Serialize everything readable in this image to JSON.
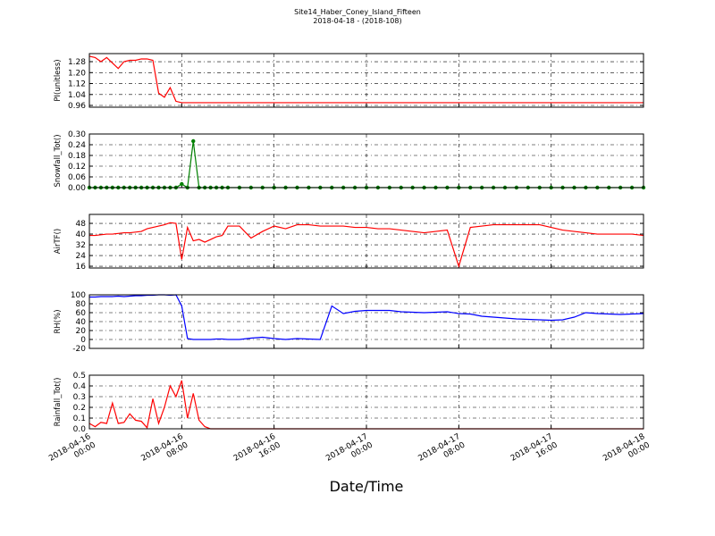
{
  "chart_data": {
    "title": "Site14_Haber_Coney_Island_Fifteen",
    "subtitle": "2018-04-18 - (2018-108)",
    "x_label": "Date/Time",
    "xlim": [
      "2018-04-16 00:00",
      "2018-04-18 00:00"
    ],
    "xticks": [
      "2018-04-16 00:00",
      "2018-04-16 08:00",
      "2018-04-16 16:00",
      "2018-04-17 00:00",
      "2018-04-17 08:00",
      "2018-04-17 16:00",
      "2018-04-18 00:00"
    ],
    "x": [
      "2018-04-16 00:00",
      "2018-04-16 00:30",
      "2018-04-16 01:00",
      "2018-04-16 01:30",
      "2018-04-16 02:00",
      "2018-04-16 02:30",
      "2018-04-16 03:00",
      "2018-04-16 03:30",
      "2018-04-16 04:00",
      "2018-04-16 04:30",
      "2018-04-16 05:00",
      "2018-04-16 05:30",
      "2018-04-16 06:00",
      "2018-04-16 06:30",
      "2018-04-16 07:00",
      "2018-04-16 07:30",
      "2018-04-16 08:00",
      "2018-04-16 08:30",
      "2018-04-16 09:00",
      "2018-04-16 09:30",
      "2018-04-16 10:00",
      "2018-04-16 10:30",
      "2018-04-16 11:00",
      "2018-04-16 11:30",
      "2018-04-16 12:00",
      "2018-04-16 13:00",
      "2018-04-16 14:00",
      "2018-04-16 15:00",
      "2018-04-16 16:00",
      "2018-04-16 17:00",
      "2018-04-16 18:00",
      "2018-04-16 19:00",
      "2018-04-16 20:00",
      "2018-04-16 21:00",
      "2018-04-16 22:00",
      "2018-04-16 23:00",
      "2018-04-17 00:00",
      "2018-04-17 01:00",
      "2018-04-17 02:00",
      "2018-04-17 03:00",
      "2018-04-17 04:00",
      "2018-04-17 05:00",
      "2018-04-17 06:00",
      "2018-04-17 07:00",
      "2018-04-17 08:00",
      "2018-04-17 09:00",
      "2018-04-17 10:00",
      "2018-04-17 11:00",
      "2018-04-17 12:00",
      "2018-04-17 13:00",
      "2018-04-17 14:00",
      "2018-04-17 15:00",
      "2018-04-17 16:00",
      "2018-04-17 17:00",
      "2018-04-17 18:00",
      "2018-04-17 19:00",
      "2018-04-17 20:00",
      "2018-04-17 21:00",
      "2018-04-17 22:00",
      "2018-04-17 23:00",
      "2018-04-18 00:00"
    ],
    "panels": [
      {
        "type": "line",
        "y_label": "PI(unitless)",
        "color": "#ff0000",
        "ylim": [
          0.947,
          1.339
        ],
        "yticks": [
          0.96,
          1.04,
          1.12,
          {
            "value": 1.2,
            "label": "1.20"
          },
          1.28
        ],
        "values": [
          1.32,
          1.31,
          1.28,
          1.31,
          1.27,
          1.23,
          1.28,
          1.29,
          1.29,
          1.3,
          1.3,
          1.29,
          1.05,
          1.02,
          1.09,
          0.99,
          0.98,
          0.98,
          0.98,
          0.98,
          0.98,
          0.98,
          0.98,
          0.98,
          0.98,
          0.98,
          0.98,
          0.98,
          0.98,
          0.98,
          0.98,
          0.98,
          0.98,
          0.98,
          0.98,
          0.98,
          0.98,
          0.98,
          0.98,
          0.98,
          0.98,
          0.98,
          0.98,
          0.98,
          0.98,
          0.98,
          0.98,
          0.98,
          0.98,
          0.98,
          0.98,
          0.98,
          0.98,
          0.98,
          0.98,
          0.98,
          0.98,
          0.98,
          0.98,
          0.98,
          0.98
        ]
      },
      {
        "type": "line",
        "y_label": "Snowfall_Tot()",
        "color": "#008000",
        "markers": true,
        "ylim": [
          0,
          0.3
        ],
        "yticks": [
          {
            "value": 0,
            "label": "0.00"
          },
          0.06,
          0.12,
          0.18,
          0.24,
          {
            "value": 0.3,
            "label": "0.30"
          }
        ],
        "values": [
          0,
          0,
          0,
          0,
          0,
          0,
          0,
          0,
          0,
          0,
          0,
          0,
          0,
          0,
          0,
          0,
          0.02,
          0,
          0.26,
          0,
          0,
          0,
          0,
          0,
          0,
          0,
          0,
          0,
          0,
          0,
          0,
          0,
          0,
          0,
          0,
          0,
          0,
          0,
          0,
          0,
          0,
          0,
          0,
          0,
          0,
          0,
          0,
          0,
          0,
          0,
          0,
          0,
          0,
          0,
          0,
          0,
          0,
          0,
          0,
          0,
          0
        ]
      },
      {
        "type": "line",
        "y_label": "AirTF()",
        "color": "#ff0000",
        "ylim": [
          14.7,
          54.7
        ],
        "yticks": [
          16,
          24,
          32,
          40,
          48
        ],
        "values": [
          39,
          39,
          39.5,
          40,
          40,
          40.5,
          41,
          41,
          41.5,
          42,
          44,
          45,
          46,
          47,
          48.5,
          48,
          21,
          45,
          35,
          36,
          34,
          36,
          38,
          39,
          46,
          46,
          37,
          42,
          46,
          44,
          47,
          47,
          46,
          46,
          46,
          45,
          45,
          44,
          44,
          43,
          42,
          41,
          42,
          43,
          16,
          45,
          46,
          47,
          47,
          47,
          47,
          47,
          45,
          43,
          42,
          41,
          40,
          40,
          40,
          40,
          39
        ]
      },
      {
        "type": "line",
        "y_label": "RH(%)",
        "color": "#0000ff",
        "ylim": [
          -20,
          100
        ],
        "yticks": [
          -20,
          0,
          20,
          40,
          60,
          80,
          100
        ],
        "values": [
          95,
          95,
          96,
          96,
          96,
          97,
          96,
          97,
          98,
          98,
          99,
          99,
          100,
          100,
          99,
          100,
          75,
          2,
          0,
          0,
          0,
          0,
          1,
          1,
          0,
          0,
          3,
          5,
          2,
          0,
          2,
          1,
          0,
          75,
          58,
          63,
          65,
          65,
          65,
          62,
          61,
          60,
          61,
          62,
          58,
          57,
          52,
          50,
          48,
          46,
          45,
          44,
          43,
          44,
          50,
          60,
          58,
          57,
          56,
          57,
          58
        ]
      },
      {
        "type": "line",
        "y_label": "Rainfall_Tot()",
        "color": "#ff0000",
        "ylim": [
          0,
          0.5
        ],
        "yticks": [
          {
            "value": 0,
            "label": "0.0"
          },
          0.1,
          0.2,
          0.3,
          0.4,
          0.5
        ],
        "values": [
          0.05,
          0.02,
          0.06,
          0.05,
          0.24,
          0.05,
          0.06,
          0.14,
          0.08,
          0.07,
          0.01,
          0.28,
          0.05,
          0.2,
          0.4,
          0.3,
          0.45,
          0.1,
          0.33,
          0.08,
          0.02,
          0,
          0,
          0,
          0,
          0,
          0,
          0,
          0,
          0,
          0,
          0,
          0,
          0,
          0,
          0,
          0,
          0,
          0,
          0,
          0,
          0,
          0,
          0,
          0,
          0,
          0,
          0,
          0,
          0,
          0,
          0,
          0,
          0,
          0,
          0,
          0,
          0,
          0,
          0,
          0
        ]
      }
    ]
  }
}
